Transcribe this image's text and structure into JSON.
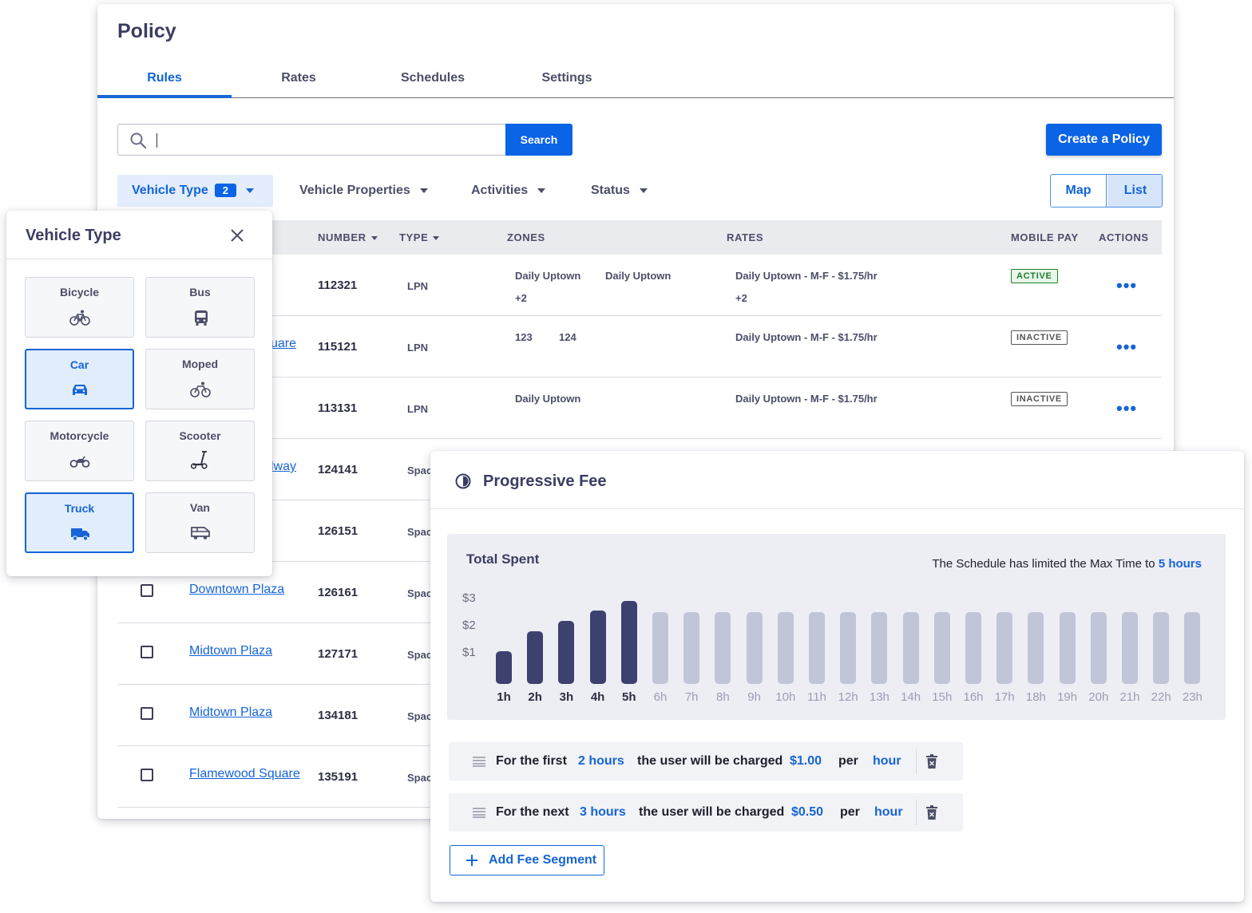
{
  "policy": {
    "title": "Policy",
    "tabs": [
      {
        "label": "Rules",
        "active": true
      },
      {
        "label": "Rates",
        "active": false
      },
      {
        "label": "Schedules",
        "active": false
      },
      {
        "label": "Settings",
        "active": false
      }
    ],
    "search": {
      "value": "",
      "button_label": "Search",
      "icon": "search-icon"
    },
    "create_button_label": "Create a Policy",
    "filters": [
      {
        "label": "Vehicle Type",
        "count": "2",
        "active": true
      },
      {
        "label": "Vehicle Properties",
        "active": false
      },
      {
        "label": "Activities",
        "active": false
      },
      {
        "label": "Status",
        "active": false
      }
    ],
    "view_toggle": {
      "map": "Map",
      "list": "List",
      "selected": "List"
    },
    "table": {
      "columns": [
        "NUMBER",
        "TYPE",
        "ZONES",
        "RATES",
        "MOBILE PAY",
        "ACTIONS"
      ],
      "rows": [
        {
          "name": "",
          "number": "112321",
          "type": "LPN",
          "zones": [
            "Daily Uptown",
            "Daily Uptown"
          ],
          "zones_more": "+2",
          "rate": "Daily Uptown - M-F - $1.75/hr",
          "rate_more": "+2",
          "status": "ACTIVE"
        },
        {
          "name": "uare",
          "number": "115121",
          "type": "LPN",
          "zones": [
            "123",
            "124"
          ],
          "zones_more": "",
          "rate": "Daily Uptown - M-F - $1.75/hr",
          "rate_more": "",
          "status": "INACTIVE"
        },
        {
          "name": "",
          "number": "113131",
          "type": "LPN",
          "zones": [
            "Daily Uptown"
          ],
          "zones_more": "",
          "rate": "Daily Uptown - M-F - $1.75/hr",
          "rate_more": "",
          "status": "INACTIVE"
        },
        {
          "name": "lway",
          "number": "124141",
          "type": "Spac"
        },
        {
          "name": "",
          "number": "126151",
          "type": "Spac"
        },
        {
          "name": "Downtown Plaza",
          "number": "126161",
          "type": "Spac"
        },
        {
          "name": "Midtown Plaza",
          "number": "127171",
          "type": "Spac"
        },
        {
          "name": "Midtown Plaza",
          "number": "134181",
          "type": "Spac"
        },
        {
          "name": "Flamewood Square",
          "number": "135191",
          "type": "Spac"
        }
      ]
    }
  },
  "vehicle_type_panel": {
    "title": "Vehicle Type",
    "close_icon": "close-icon",
    "options": [
      {
        "label": "Bicycle",
        "icon": "bicycle-icon",
        "selected": false
      },
      {
        "label": "Bus",
        "icon": "bus-icon",
        "selected": false
      },
      {
        "label": "Car",
        "icon": "car-icon",
        "selected": true
      },
      {
        "label": "Moped",
        "icon": "moped-icon",
        "selected": false
      },
      {
        "label": "Motorcycle",
        "icon": "motorcycle-icon",
        "selected": false
      },
      {
        "label": "Scooter",
        "icon": "scooter-icon",
        "selected": false
      },
      {
        "label": "Truck",
        "icon": "truck-icon",
        "selected": true
      },
      {
        "label": "Van",
        "icon": "van-icon",
        "selected": false
      }
    ]
  },
  "progressive_fee": {
    "title": "Progressive Fee",
    "icon": "progressive-icon",
    "chart_title": "Total Spent",
    "note_prefix": "The Schedule has limited the Max Time to ",
    "note_value": "5 hours",
    "segments": [
      {
        "prefix": "For the first",
        "duration": "2 hours",
        "middle": "the user will be charged",
        "amount": "$1.00",
        "per": "per",
        "unit": "hour"
      },
      {
        "prefix": "For the next",
        "duration": "3 hours",
        "middle": "the user will be charged",
        "amount": "$0.50",
        "per": "per",
        "unit": "hour"
      }
    ],
    "add_button_label": "Add Fee Segment"
  },
  "chart_data": {
    "type": "bar",
    "title": "Total Spent",
    "categories": [
      "1h",
      "2h",
      "3h",
      "4h",
      "5h",
      "6h",
      "7h",
      "8h",
      "9h",
      "10h",
      "11h",
      "12h",
      "13h",
      "14h",
      "15h",
      "16h",
      "17h",
      "18h",
      "19h",
      "20h",
      "21h",
      "22h",
      "23h"
    ],
    "values": [
      1.0,
      2.0,
      2.5,
      3.0,
      3.5,
      null,
      null,
      null,
      null,
      null,
      null,
      null,
      null,
      null,
      null,
      null,
      null,
      null,
      null,
      null,
      null,
      null,
      null
    ],
    "y_ticks": [
      "$1",
      "$2",
      "$3"
    ],
    "active_count": 5,
    "colors": {
      "active": "#3d4170",
      "inactive": "#c1c5d8"
    }
  }
}
